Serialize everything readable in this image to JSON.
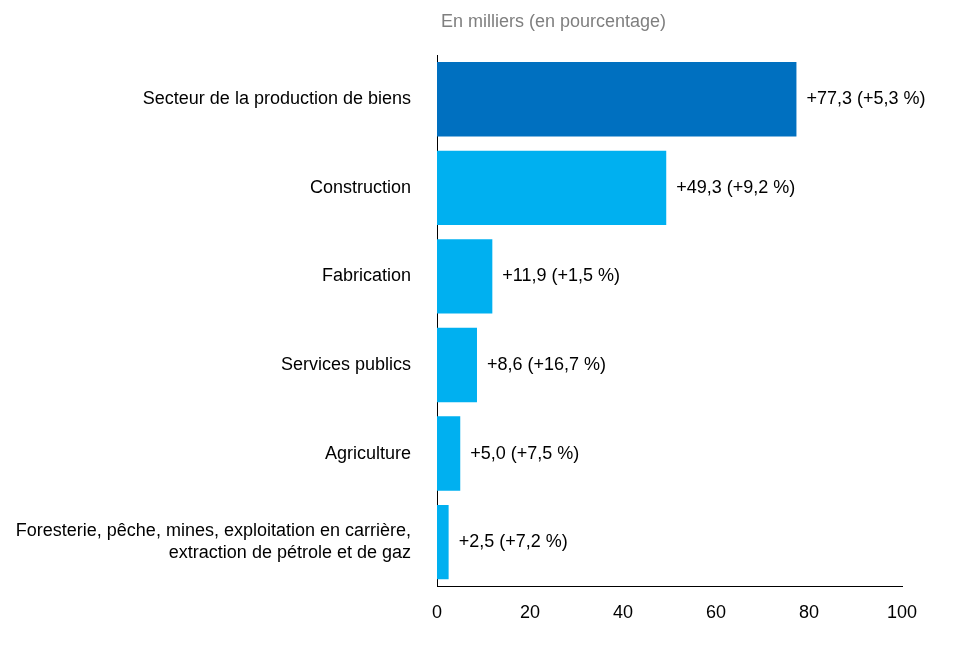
{
  "chart_data": {
    "type": "bar",
    "orientation": "horizontal",
    "xlabel": "En milliers (en pourcentage)",
    "categories": [
      "Secteur de la production de biens",
      "Construction",
      "Fabrication",
      "Services publics",
      "Agriculture",
      "Foresterie, pêche, mines, exploitation en carrière, extraction de pétrole et de gaz"
    ],
    "values": [
      77.3,
      49.3,
      11.9,
      8.6,
      5.0,
      2.5
    ],
    "value_labels": [
      "+77,3 (+5,3 %)",
      "+49,3 (+9,2 %)",
      "+11,9 (+1,5 %)",
      "+8,6 (+16,7 %)",
      "+5,0 (+7,5 %)",
      "+2,5 (+7,2 %)"
    ],
    "colors": [
      "#0070c0",
      "#00b0f0",
      "#00b0f0",
      "#00b0f0",
      "#00b0f0",
      "#00b0f0"
    ],
    "xlim": [
      0,
      100
    ],
    "xticks": [
      0,
      20,
      40,
      60,
      80,
      100
    ],
    "grid": false,
    "data_labels": true
  }
}
